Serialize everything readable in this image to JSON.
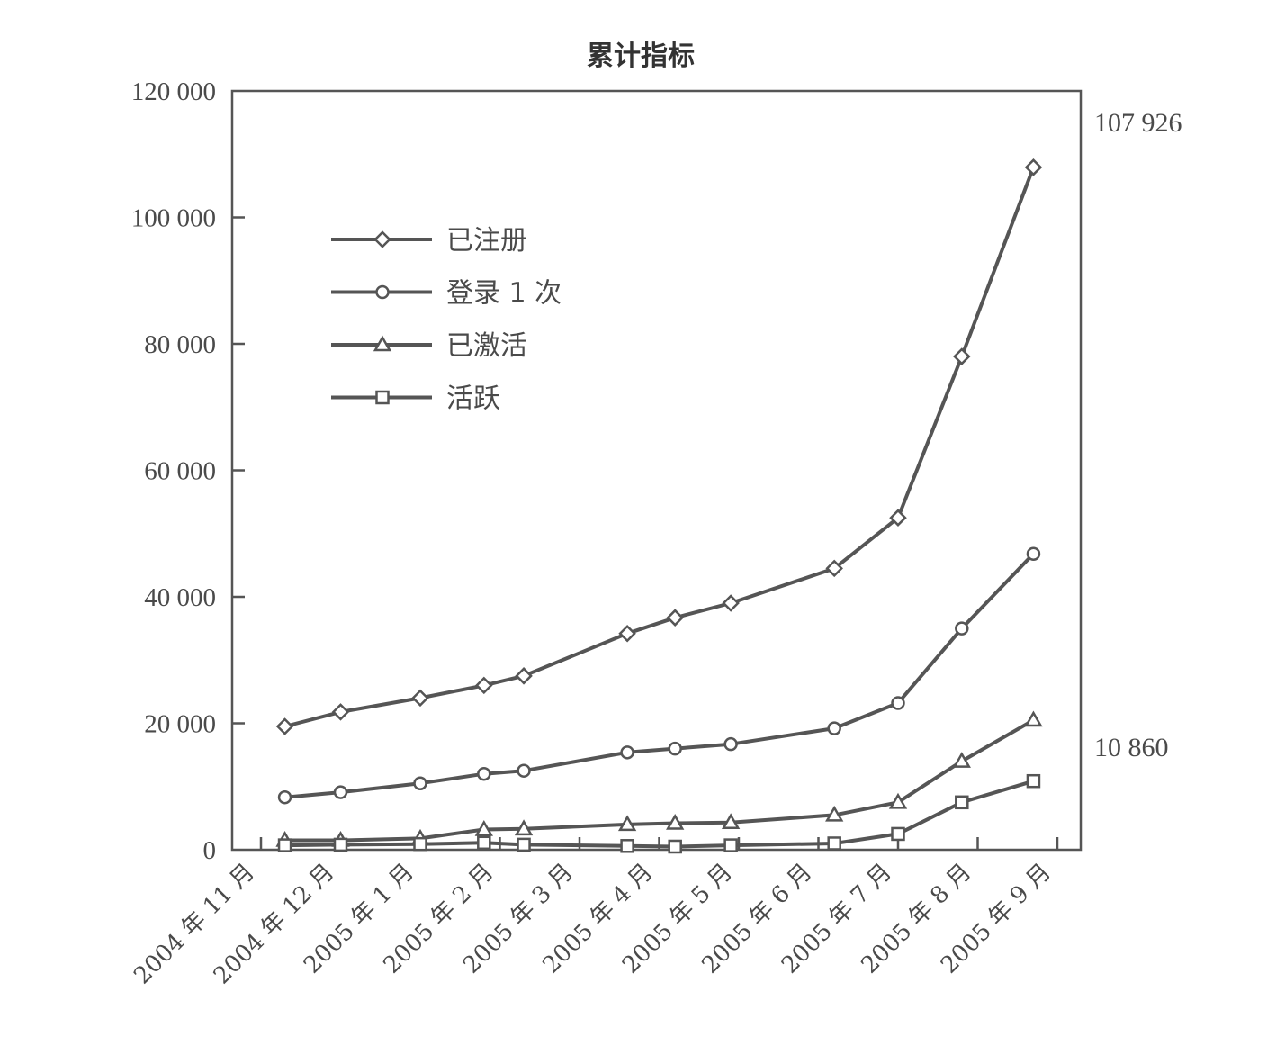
{
  "chart_data": {
    "type": "line",
    "title": "累计指标",
    "xlabel": "",
    "ylabel": "",
    "ylim": [
      0,
      120000
    ],
    "yticks": [
      0,
      20000,
      40000,
      60000,
      80000,
      100000,
      120000
    ],
    "ytick_labels": [
      "0",
      "20 000",
      "40 000",
      "60 000",
      "80 000",
      "100 000",
      "120 000"
    ],
    "categories": [
      "2004 年 11 月",
      "2004 年 12 月",
      "2005 年 1 月",
      "2005 年 2 月",
      "2005 年 3 月",
      "2005 年 4 月",
      "2005 年 5 月",
      "2005 年 6 月",
      "2005 年 7 月",
      "2005 年 8 月",
      "2005 年 9 月"
    ],
    "legend_position": "upper-left",
    "grid": false,
    "series": [
      {
        "name": "已注册",
        "marker": "diamond",
        "x": [
          0.3,
          1.0,
          2.0,
          2.8,
          3.3,
          4.6,
          5.2,
          5.9,
          7.2,
          8.0,
          8.8,
          9.7
        ],
        "y": [
          19500,
          21800,
          24000,
          26000,
          27500,
          34200,
          36700,
          39000,
          44500,
          52500,
          78000,
          107926
        ]
      },
      {
        "name": "登录 1 次",
        "marker": "circle",
        "x": [
          0.3,
          1.0,
          2.0,
          2.8,
          3.3,
          4.6,
          5.2,
          5.9,
          7.2,
          8.0,
          8.8,
          9.7
        ],
        "y": [
          8300,
          9100,
          10500,
          12000,
          12500,
          15400,
          16000,
          16700,
          19200,
          23200,
          35000,
          46800
        ]
      },
      {
        "name": "已激活",
        "marker": "triangle",
        "x": [
          0.3,
          1.0,
          2.0,
          2.8,
          3.3,
          4.6,
          5.2,
          5.9,
          7.2,
          8.0,
          8.8,
          9.7
        ],
        "y": [
          1500,
          1500,
          1800,
          3200,
          3300,
          4000,
          4200,
          4300,
          5500,
          7500,
          14000,
          20500
        ]
      },
      {
        "name": "活跃",
        "marker": "square",
        "x": [
          0.3,
          1.0,
          2.0,
          2.8,
          3.3,
          4.6,
          5.2,
          5.9,
          7.2,
          8.0,
          8.8,
          9.7
        ],
        "y": [
          700,
          800,
          900,
          1100,
          800,
          600,
          500,
          700,
          1000,
          2500,
          7500,
          10860
        ]
      }
    ],
    "annotations": [
      {
        "text": "107 926",
        "series": "已注册",
        "y": 107926
      },
      {
        "text": "10 860",
        "series": "活跃",
        "y": 10860
      }
    ]
  }
}
